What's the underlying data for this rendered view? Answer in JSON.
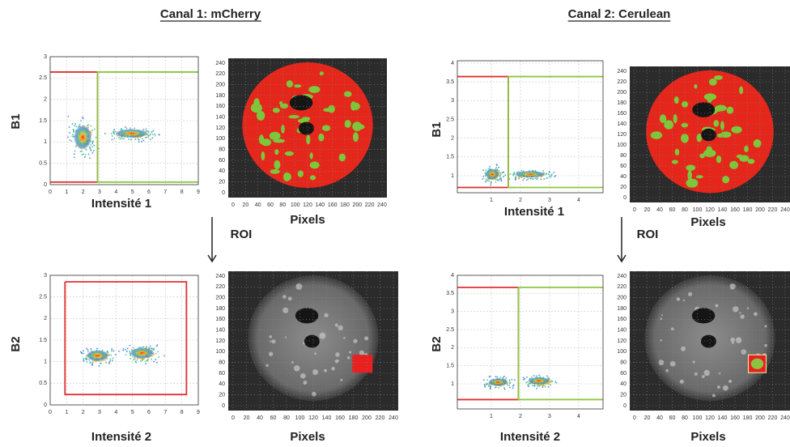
{
  "channels": [
    {
      "title": "Canal 1: mCherry",
      "roi": "ROI",
      "scatter_top": {
        "y_label": "B1",
        "x_label": "Intensité 1",
        "yticks": [
          0,
          0.5,
          1,
          1.5,
          2,
          2.5,
          3
        ],
        "xticks": [
          0,
          1,
          2,
          3,
          4,
          5,
          6,
          7,
          8,
          9
        ]
      },
      "image_top": {
        "x_label": "Pixels",
        "yticks": [
          0,
          20,
          40,
          60,
          80,
          100,
          120,
          140,
          160,
          180,
          200,
          220,
          240
        ],
        "xticks": [
          0,
          20,
          40,
          60,
          80,
          100,
          120,
          140,
          160,
          180,
          200,
          220,
          240
        ]
      },
      "scatter_bottom": {
        "y_label": "B2",
        "x_label": "Intensité 2",
        "yticks": [
          0,
          0.5,
          1,
          1.5,
          2,
          2.5,
          3
        ],
        "xticks": [
          0,
          1,
          2,
          3,
          4,
          5,
          6,
          7,
          8,
          9
        ]
      },
      "image_bottom": {
        "x_label": "Pixels",
        "yticks": [
          0,
          20,
          40,
          60,
          80,
          100,
          120,
          140,
          160,
          180,
          200,
          220,
          240
        ],
        "xticks": [
          0,
          20,
          40,
          60,
          80,
          100,
          120,
          140,
          160,
          180,
          200,
          220,
          240
        ]
      }
    },
    {
      "title": "Canal 2: Cerulean",
      "roi": "ROI",
      "scatter_top": {
        "y_label": "B1",
        "x_label": "Intensité 1",
        "yticks": [
          1,
          1.5,
          2,
          2.5,
          3,
          3.5,
          4
        ],
        "xticks": [
          1,
          2,
          3,
          4
        ]
      },
      "image_top": {
        "x_label": "Pixels",
        "yticks": [
          0,
          20,
          40,
          60,
          80,
          100,
          120,
          140,
          160,
          180,
          200,
          220,
          240
        ],
        "xticks": [
          0,
          20,
          40,
          60,
          80,
          100,
          120,
          140,
          160,
          180,
          200,
          220,
          240
        ]
      },
      "scatter_bottom": {
        "y_label": "B2",
        "x_label": "Intensité 2",
        "yticks": [
          1,
          1.5,
          2,
          2.5,
          3,
          3.5,
          4
        ],
        "xticks": [
          1,
          2,
          3,
          4
        ]
      },
      "image_bottom": {
        "x_label": "Pixels",
        "yticks": [
          0,
          20,
          40,
          60,
          80,
          100,
          120,
          140,
          160,
          180,
          200,
          220,
          240
        ],
        "xticks": [
          0,
          20,
          40,
          60,
          80,
          100,
          120,
          140,
          160,
          180,
          200,
          220,
          240
        ]
      }
    }
  ]
}
